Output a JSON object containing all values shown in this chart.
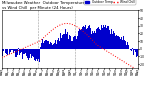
{
  "bg_color": "#ffffff",
  "plot_bg": "#ffffff",
  "bar_color": "#0000cc",
  "line_color": "#ff0000",
  "vline_color": "#999999",
  "vline_positions": [
    0.27,
    0.54
  ],
  "y_min": -25,
  "y_max": 50,
  "num_points": 1440,
  "title_fontsize": 2.8,
  "tick_fontsize": 2.2,
  "legend_bar_label": "Outdoor Temp",
  "legend_line_label": "Wind Chill",
  "title_text": "Milwaukee Weather  Outdoor Temperature vs  Wind Chill  per Minute  (24 Hours)"
}
